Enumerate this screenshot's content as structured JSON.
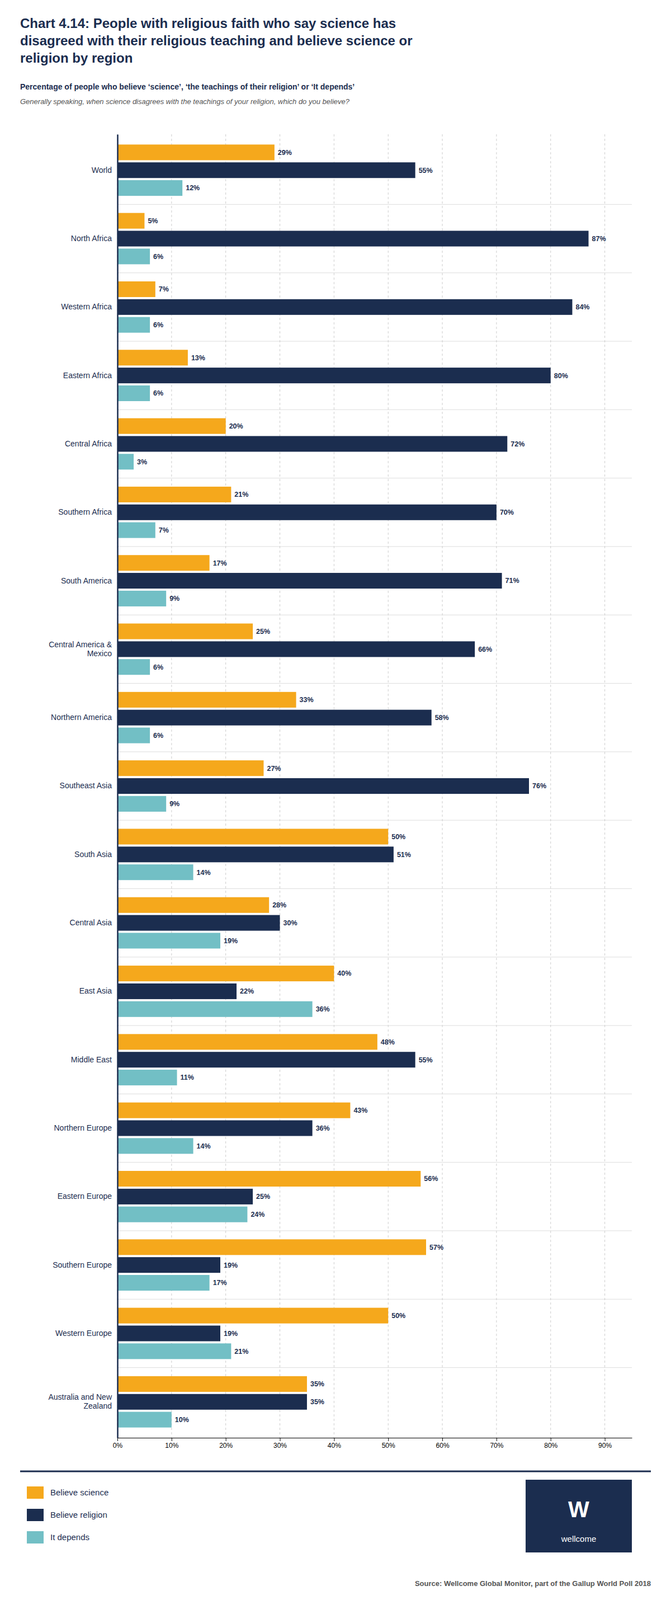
{
  "chart_data": {
    "type": "bar",
    "orientation": "horizontal",
    "title": "Chart 4.14: People with religious faith who say science has\ndisagreed with their religious teaching and believe science or\nreligion by region",
    "subtitles": [
      "Percentage of people who believe ‘science’, ‘the teachings of their religion’ or ‘It depends’",
      "Generally speaking, when science disagrees with the teachings of your religion, which do you believe?"
    ],
    "annotations": [
      "W",
      "wellcome"
    ],
    "source": "Source: Wellcome Global Monitor, part of the Gallup World Poll 2018",
    "categories": [
      "World",
      "North Africa",
      "Western Africa",
      "Eastern Africa",
      "Central Africa",
      "Southern Africa",
      "South America",
      "Central America &\nMexico",
      "Northern America",
      "Southeast Asia",
      "South Asia",
      "Central Asia",
      "East Asia",
      "Middle East",
      "Northern Europe",
      "Eastern Europe",
      "Southern Europe",
      "Western Europe",
      "Australia and New\nZealand"
    ],
    "series": [
      {
        "name": "Believe science",
        "color": "#F5A81C",
        "values": [
          29,
          5,
          7,
          13,
          20,
          21,
          17,
          25,
          33,
          27,
          50,
          28,
          40,
          48,
          43,
          56,
          57,
          50,
          35
        ],
        "value_labels": [
          "29%",
          "5%",
          "7%",
          "13%",
          "20%",
          "21%",
          "17%",
          "25%",
          "33%",
          "27%",
          "50%",
          "28%",
          "40%",
          "48%",
          "43%",
          "56%",
          "57%",
          "50%",
          "35%"
        ]
      },
      {
        "name": "Believe religion",
        "color": "#1B2D4F",
        "values": [
          55,
          87,
          84,
          80,
          72,
          70,
          71,
          66,
          58,
          76,
          51,
          30,
          22,
          55,
          36,
          25,
          19,
          19,
          35
        ],
        "value_labels": [
          "55%",
          "87%",
          "84%",
          "80%",
          "72%",
          "70%",
          "71%",
          "66%",
          "58%",
          "76%",
          "51%",
          "30%",
          "22%",
          "55%",
          "36%",
          "25%",
          "19%",
          "19%",
          "35%"
        ]
      },
      {
        "name": "It depends",
        "color": "#72BFC5",
        "values": [
          12,
          6,
          6,
          6,
          3,
          7,
          9,
          6,
          6,
          9,
          14,
          19,
          36,
          11,
          14,
          24,
          17,
          21,
          10
        ],
        "value_labels": [
          "12%",
          "6%",
          "6%",
          "6%",
          "3%",
          "7%",
          "9%",
          "6%",
          "6%",
          "9%",
          "14%",
          "19%",
          "36%",
          "11%",
          "14%",
          "24%",
          "17%",
          "21%",
          "10%"
        ]
      }
    ],
    "xlim": [
      0,
      95
    ],
    "xticks": [
      {
        "value": 0,
        "label": "0%"
      },
      {
        "value": 10,
        "label": "10%"
      },
      {
        "value": 20,
        "label": "20%"
      },
      {
        "value": 30,
        "label": "30%"
      },
      {
        "value": 40,
        "label": "40%"
      },
      {
        "value": 50,
        "label": "50%"
      },
      {
        "value": 60,
        "label": "60%"
      },
      {
        "value": 70,
        "label": "70%"
      },
      {
        "value": 80,
        "label": "80%"
      },
      {
        "value": 90,
        "label": "90%"
      }
    ],
    "grid": true,
    "legend": "bottom",
    "data_labels": true
  }
}
